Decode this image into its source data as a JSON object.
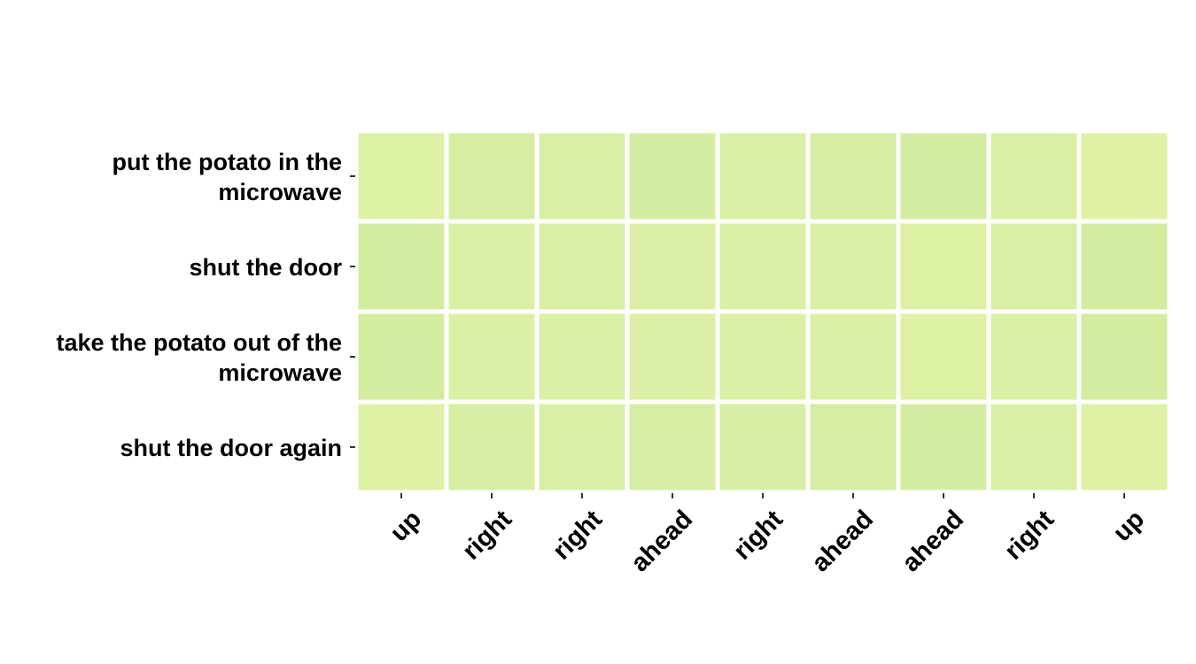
{
  "chart_data": {
    "type": "heatmap",
    "title": "",
    "xlabel": "",
    "ylabel": "",
    "rows": [
      [
        "put the potato in the",
        "microwave"
      ],
      [
        "shut the door"
      ],
      [
        "take the potato out of the",
        "microwave"
      ],
      [
        "shut the door again"
      ]
    ],
    "columns": [
      "up",
      "right",
      "right",
      "ahead",
      "right",
      "ahead",
      "ahead",
      "right",
      "up"
    ],
    "values": [
      [
        0.2,
        0.45,
        0.33,
        0.48,
        0.35,
        0.45,
        0.52,
        0.35,
        0.18
      ],
      [
        0.55,
        0.25,
        0.32,
        0.27,
        0.3,
        0.25,
        0.22,
        0.33,
        0.55
      ],
      [
        0.55,
        0.25,
        0.3,
        0.27,
        0.28,
        0.25,
        0.22,
        0.3,
        0.55
      ],
      [
        0.18,
        0.38,
        0.35,
        0.45,
        0.38,
        0.45,
        0.48,
        0.35,
        0.18
      ]
    ],
    "value_range": [
      0,
      1
    ],
    "colormap": {
      "low": "#e3f4a8",
      "high": "#c6e59a"
    },
    "colorbar": false,
    "grid": false
  }
}
